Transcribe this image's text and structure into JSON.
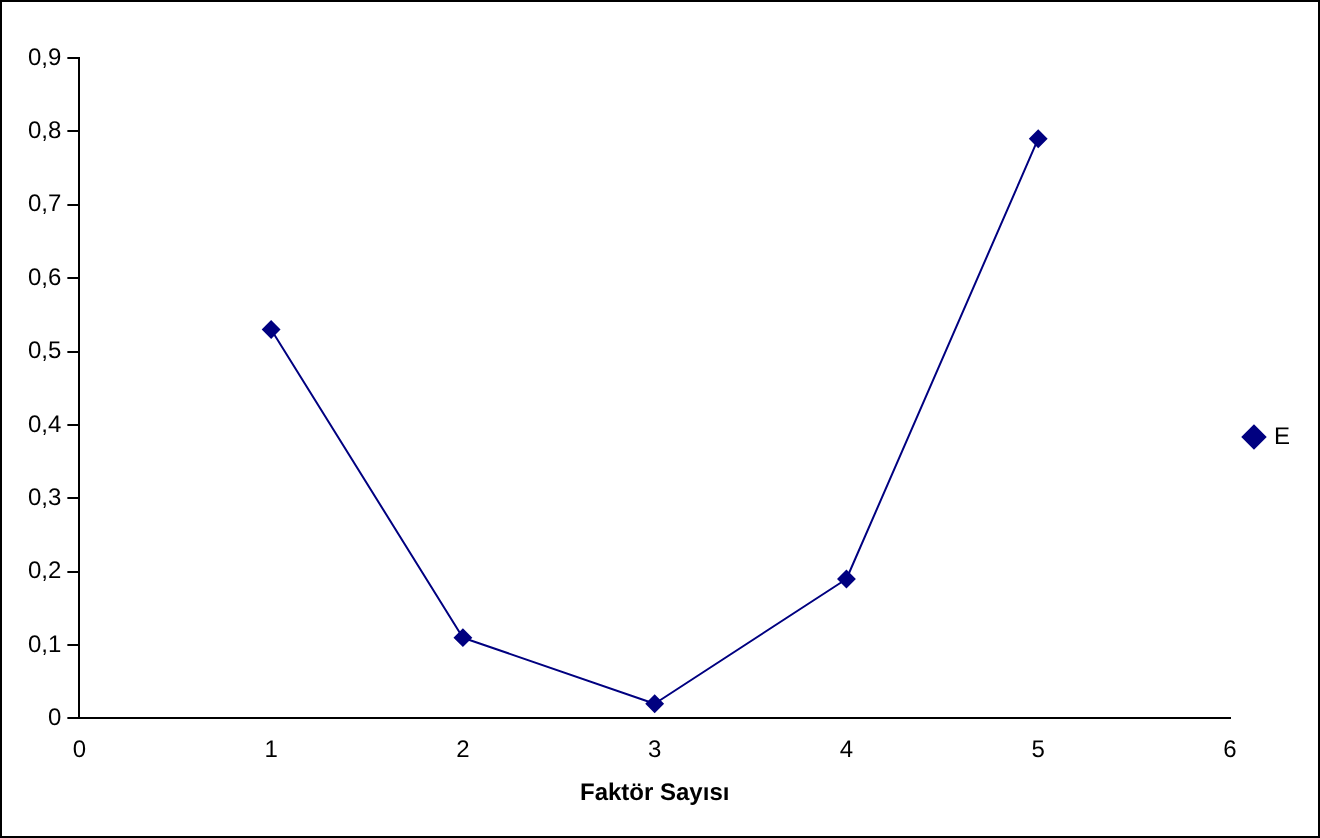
{
  "chart_data": {
    "type": "line",
    "xlabel": "Faktör Sayısı",
    "x": [
      1,
      2,
      3,
      4,
      5
    ],
    "series": [
      {
        "name": "E",
        "color": "#000080",
        "values": [
          0.53,
          0.11,
          0.02,
          0.19,
          0.79
        ]
      }
    ],
    "xlim": [
      0,
      6
    ],
    "xticks": [
      0,
      1,
      2,
      3,
      4,
      5,
      6
    ],
    "ylim": [
      0,
      0.9
    ],
    "yticks": [
      {
        "value": 0,
        "label": "0"
      },
      {
        "value": 0.1,
        "label": "0,1"
      },
      {
        "value": 0.2,
        "label": "0,2"
      },
      {
        "value": 0.3,
        "label": "0,3"
      },
      {
        "value": 0.4,
        "label": "0,4"
      },
      {
        "value": 0.5,
        "label": "0,5"
      },
      {
        "value": 0.6,
        "label": "0,6"
      },
      {
        "value": 0.7,
        "label": "0,7"
      },
      {
        "value": 0.8,
        "label": "0,8"
      },
      {
        "value": 0.9,
        "label": "0,9"
      }
    ],
    "grid": false,
    "legend": "right",
    "marker": "diamond",
    "line_style": "solid"
  }
}
